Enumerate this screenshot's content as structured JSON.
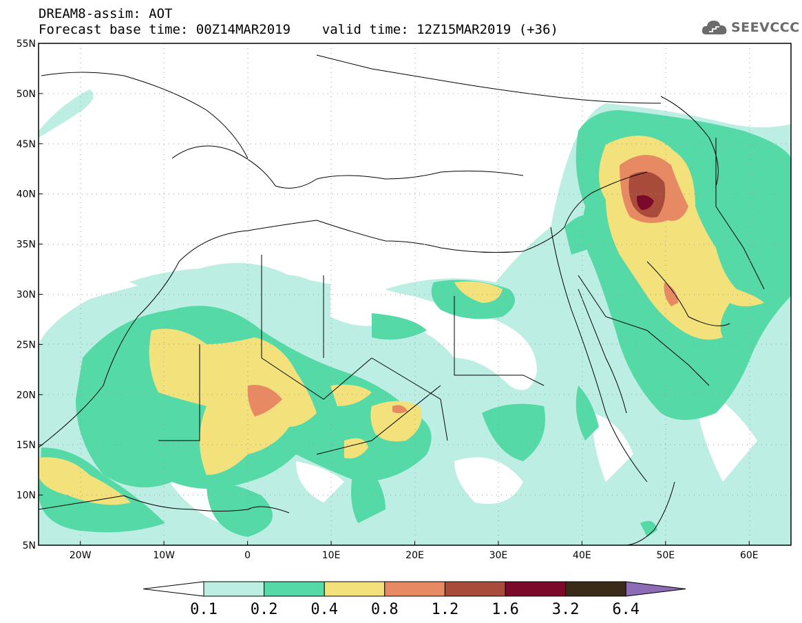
{
  "header": {
    "title_line1": "DREAM8-assim: AOT",
    "title_line2": "Forecast base time: 00Z14MAR2019    valid time: 12Z15MAR2019 (+36)"
  },
  "logo": {
    "text": "SEEVCCC",
    "icon": "cloud-icon",
    "color": "#6b6b6b"
  },
  "map": {
    "projection": "lat-lon",
    "lon_range": [
      -25,
      65
    ],
    "lat_range": [
      5,
      55
    ],
    "lat_ticks": [
      "5N",
      "10N",
      "15N",
      "20N",
      "25N",
      "30N",
      "35N",
      "40N",
      "45N",
      "50N",
      "55N"
    ],
    "lon_ticks": [
      "20W",
      "10W",
      "0",
      "10E",
      "20E",
      "30E",
      "40E",
      "50E",
      "60E"
    ],
    "grid": "dotted"
  },
  "colorbar": {
    "levels": [
      "0.1",
      "0.2",
      "0.4",
      "0.8",
      "1.2",
      "1.6",
      "3.2",
      "6.4"
    ],
    "colors": [
      "#ffffff",
      "#bdeee4",
      "#55d9a6",
      "#f3e27c",
      "#e78a63",
      "#a94b3a",
      "#7b0a2a",
      "#3a2a18",
      "#8e6bb5"
    ]
  }
}
